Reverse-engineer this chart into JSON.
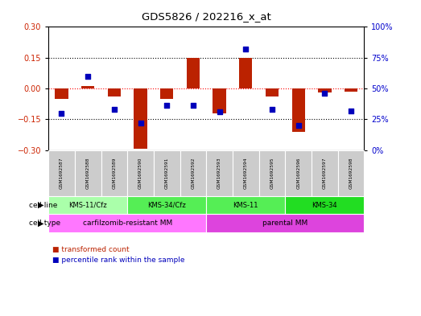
{
  "title": "GDS5826 / 202216_x_at",
  "samples": [
    "GSM1692587",
    "GSM1692588",
    "GSM1692589",
    "GSM1692590",
    "GSM1692591",
    "GSM1692592",
    "GSM1692593",
    "GSM1692594",
    "GSM1692595",
    "GSM1692596",
    "GSM1692597",
    "GSM1692598"
  ],
  "transformed_count": [
    -0.05,
    0.01,
    -0.04,
    -0.295,
    -0.05,
    0.15,
    -0.12,
    0.15,
    -0.04,
    -0.21,
    -0.02,
    -0.015
  ],
  "percentile_rank": [
    30,
    60,
    33,
    22,
    36,
    36,
    31,
    82,
    33,
    20,
    46,
    32
  ],
  "ylim_left": [
    -0.3,
    0.3
  ],
  "ylim_right": [
    0,
    100
  ],
  "yticks_left": [
    -0.3,
    -0.15,
    0,
    0.15,
    0.3
  ],
  "yticks_right": [
    0,
    25,
    50,
    75,
    100
  ],
  "ytick_labels_right": [
    "0%",
    "25%",
    "50%",
    "75%",
    "100%"
  ],
  "hlines_dotted": [
    -0.15,
    0.15
  ],
  "hline_red": 0,
  "bar_color": "#bb2200",
  "dot_color": "#0000bb",
  "cell_line_groups": [
    {
      "label": "KMS-11/Cfz",
      "start": 0,
      "end": 3,
      "color": "#aaffaa"
    },
    {
      "label": "KMS-34/Cfz",
      "start": 3,
      "end": 6,
      "color": "#55ee55"
    },
    {
      "label": "KMS-11",
      "start": 6,
      "end": 9,
      "color": "#55ee55"
    },
    {
      "label": "KMS-34",
      "start": 9,
      "end": 12,
      "color": "#22dd22"
    }
  ],
  "cell_type_groups": [
    {
      "label": "carfilzomib-resistant MM",
      "start": 0,
      "end": 6,
      "color": "#ff77ff"
    },
    {
      "label": "parental MM",
      "start": 6,
      "end": 12,
      "color": "#dd44dd"
    }
  ],
  "cell_line_label": "cell line",
  "cell_type_label": "cell type",
  "legend_bar_label": "transformed count",
  "legend_dot_label": "percentile rank within the sample",
  "tick_color_left": "#cc2200",
  "tick_color_right": "#0000cc",
  "sample_box_color": "#cccccc"
}
